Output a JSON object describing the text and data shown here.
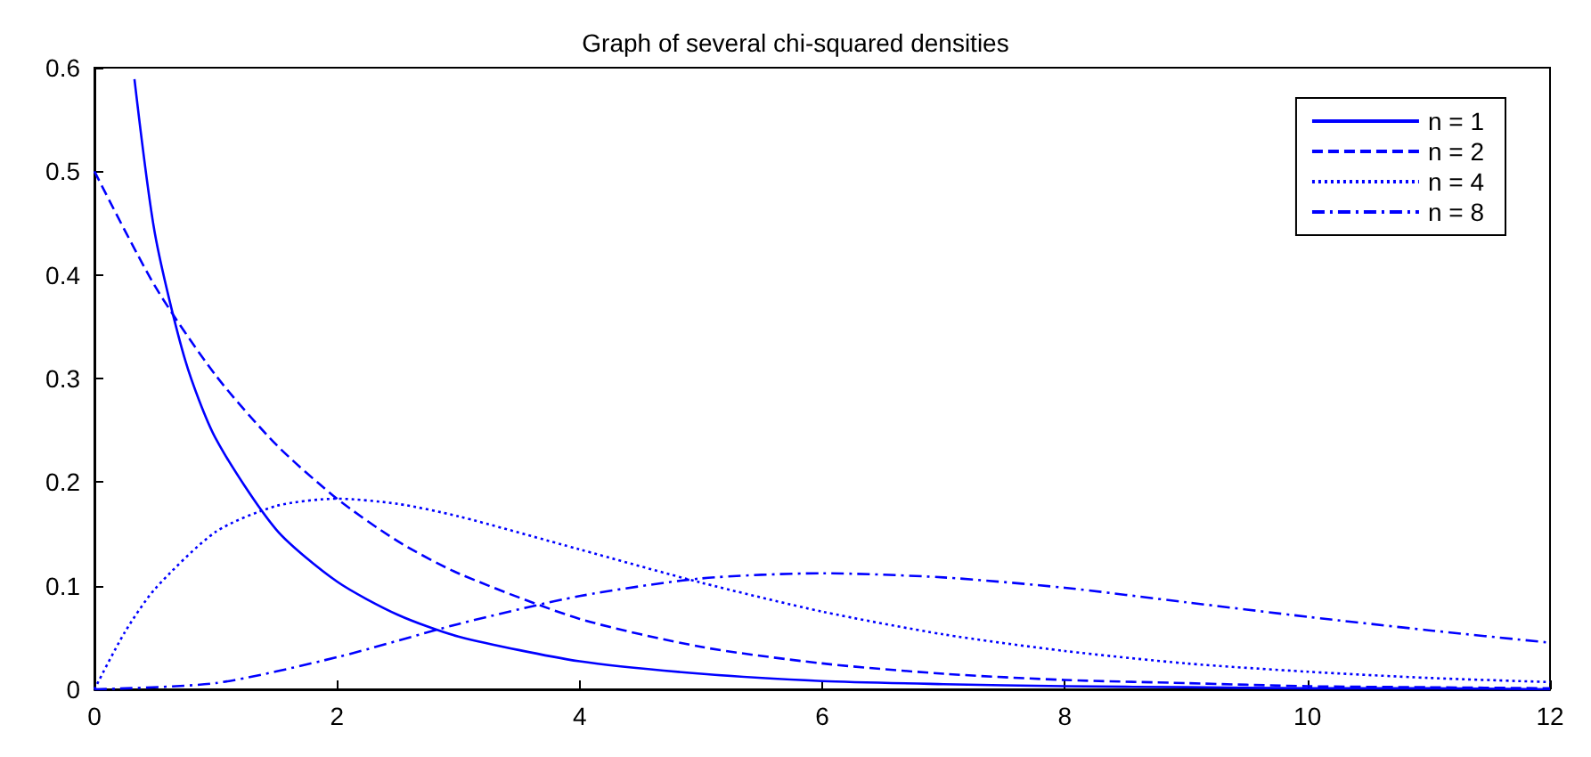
{
  "chart_data": {
    "type": "line",
    "title": "Graph of several chi-squared densities",
    "xlim": [
      0,
      12
    ],
    "xticks": [
      0,
      2,
      4,
      6,
      8,
      10,
      12
    ],
    "ylim": [
      0,
      0.6
    ],
    "yticks": [
      0,
      0.1,
      0.2,
      0.3,
      0.4,
      0.5,
      0.6
    ],
    "grid": false,
    "legend": "top right",
    "marker": "none",
    "series": [
      {
        "name": "n = 1",
        "color": "#0000ff",
        "line_style": "solid",
        "x": [
          0.33,
          0.5,
          0.75,
          1,
          1.5,
          2,
          2.5,
          3,
          4,
          5,
          6,
          7,
          8,
          9,
          10,
          11,
          12
        ],
        "values": [
          0.589,
          0.439,
          0.317,
          0.242,
          0.154,
          0.104,
          0.072,
          0.051,
          0.027,
          0.015,
          0.008,
          0.005,
          0.003,
          0.002,
          0.001,
          0.001,
          0.0
        ]
      },
      {
        "name": "n = 2",
        "color": "#0000ff",
        "line_style": "dashed",
        "x": [
          0,
          0.5,
          1,
          1.5,
          2,
          2.5,
          3,
          4,
          5,
          6,
          7,
          8,
          9,
          10,
          11,
          12
        ],
        "values": [
          0.5,
          0.389,
          0.303,
          0.236,
          0.184,
          0.143,
          0.112,
          0.068,
          0.041,
          0.025,
          0.015,
          0.009,
          0.006,
          0.003,
          0.002,
          0.001
        ]
      },
      {
        "name": "n = 4",
        "color": "#0000ff",
        "line_style": "dotted",
        "x": [
          0,
          0.25,
          0.5,
          1,
          1.5,
          2,
          2.5,
          3,
          4,
          5,
          6,
          7,
          8,
          9,
          10,
          11,
          12
        ],
        "values": [
          0,
          0.055,
          0.097,
          0.152,
          0.177,
          0.184,
          0.179,
          0.167,
          0.135,
          0.103,
          0.075,
          0.053,
          0.037,
          0.025,
          0.017,
          0.011,
          0.007
        ]
      },
      {
        "name": "n = 8",
        "color": "#0000ff",
        "line_style": "dashdot",
        "x": [
          0,
          1,
          2,
          3,
          4,
          5,
          6,
          7,
          8,
          9,
          10,
          11,
          12
        ],
        "values": [
          0,
          0.006,
          0.031,
          0.063,
          0.09,
          0.107,
          0.112,
          0.108,
          0.098,
          0.084,
          0.07,
          0.057,
          0.045
        ]
      }
    ]
  }
}
